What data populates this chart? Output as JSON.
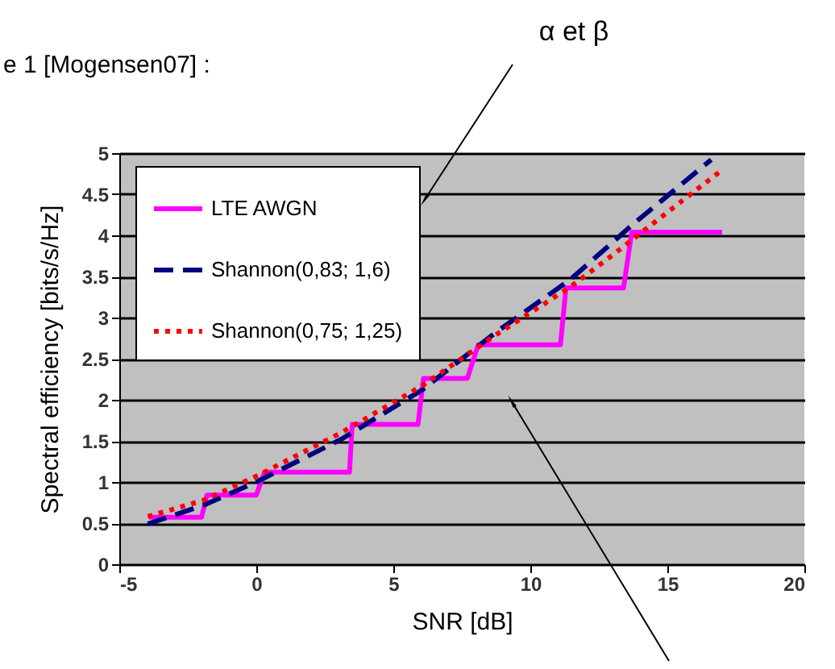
{
  "chart_data": {
    "type": "line",
    "xlabel": "SNR [dB]",
    "ylabel": "Spectral efficiency [bits/s/Hz]",
    "annotations": [
      "e 1 [Mogensen07] :",
      "α et β"
    ],
    "xlim": [
      -5,
      20
    ],
    "xticks": [
      -5,
      0,
      5,
      10,
      15,
      20
    ],
    "ylim": [
      0,
      5
    ],
    "yticks": [
      0,
      0.5,
      1,
      1.5,
      2,
      2.5,
      3,
      3.5,
      4,
      4.5,
      5
    ],
    "grid": "y",
    "legend": "top left",
    "marker": "none",
    "series": [
      {
        "name": "LTE AWGN",
        "color": "#ff00ff",
        "line_style": "solid",
        "x": [
          -3.9,
          -2.0,
          -1.8,
          0.0,
          0.3,
          3.4,
          3.5,
          5.9,
          6.1,
          7.7,
          8.1,
          11.1,
          11.3,
          13.4,
          13.7,
          17.0
        ],
        "values": [
          0.57,
          0.57,
          0.84,
          0.84,
          1.12,
          1.12,
          1.7,
          1.7,
          2.26,
          2.26,
          2.67,
          2.67,
          3.36,
          3.36,
          4.04,
          4.04
        ]
      },
      {
        "name": "Shannon(0,83; 1,6)",
        "color": "#000080",
        "line_style": "dashed",
        "x": [
          -3.96,
          -1.9,
          0.06,
          3.1,
          6.05,
          8.7,
          11.45,
          13.8,
          16.6
        ],
        "values": [
          0.49,
          0.72,
          1.01,
          1.52,
          2.12,
          2.81,
          3.46,
          4.15,
          4.92
        ]
      },
      {
        "name": "Shannon(0,75; 1,25)",
        "color": "#ff0000",
        "line_style": "dotted",
        "x": [
          -3.96,
          -1.9,
          0.06,
          3.1,
          6.05,
          8.7,
          11.45,
          13.0,
          15.5,
          16.9
        ],
        "values": [
          0.58,
          0.78,
          1.08,
          1.6,
          2.17,
          2.78,
          3.37,
          3.76,
          4.41,
          4.77
        ]
      }
    ]
  }
}
